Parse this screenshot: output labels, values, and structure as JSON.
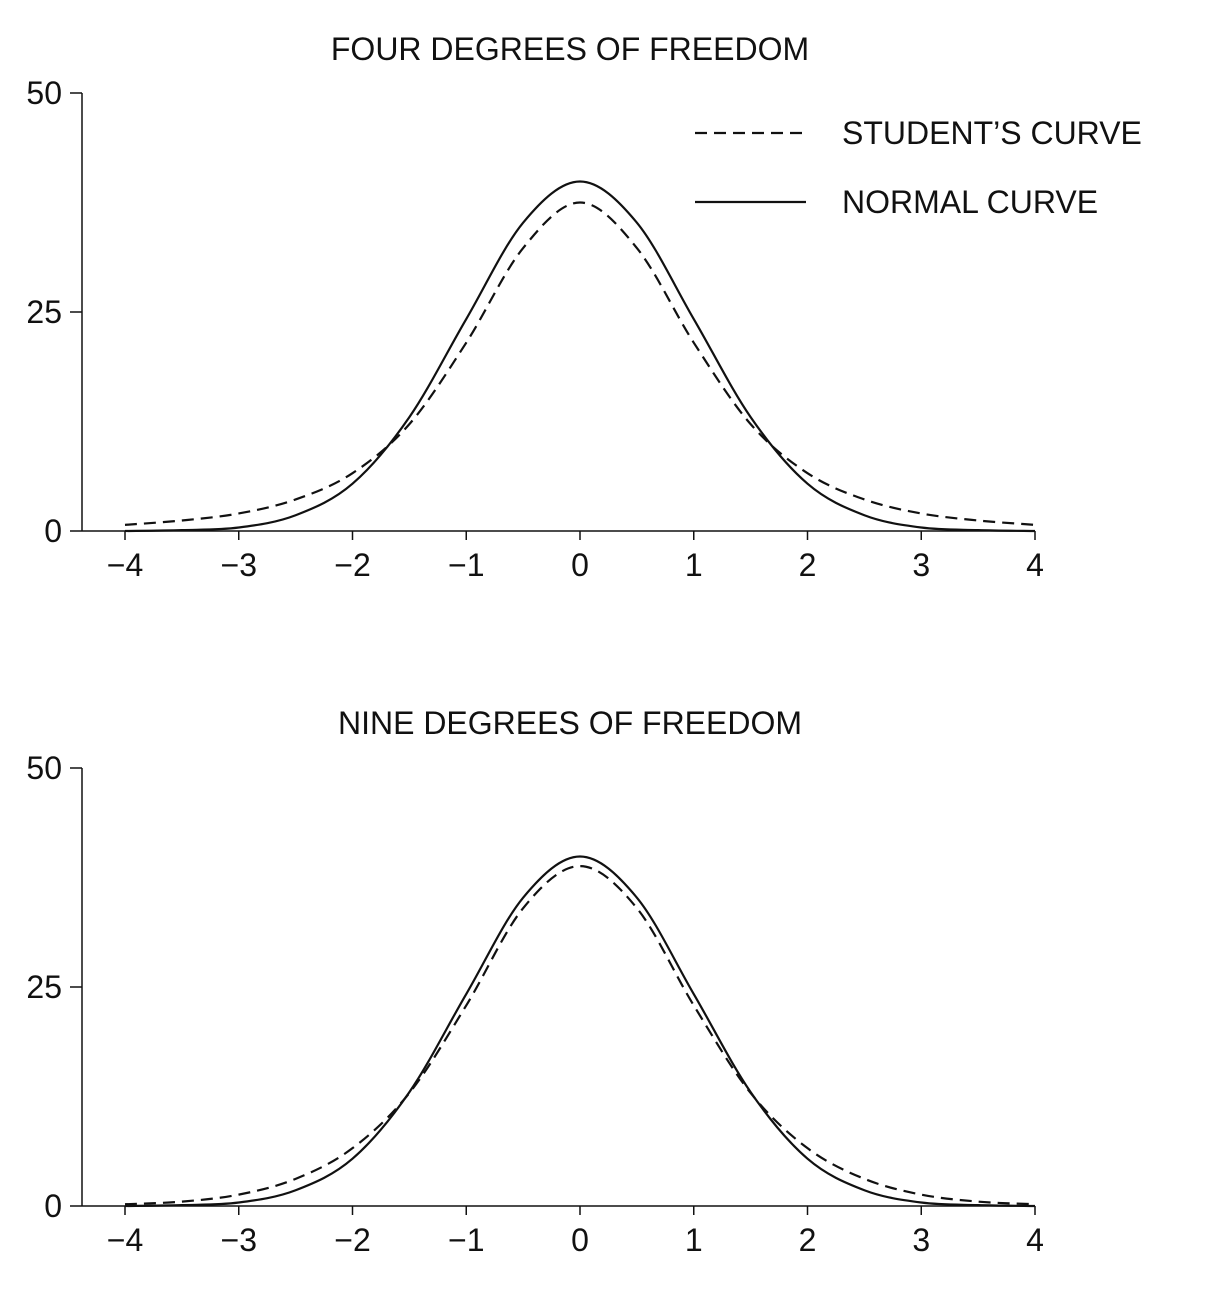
{
  "colors": {
    "ink": "#111111",
    "background": "#ffffff"
  },
  "legend": {
    "placement": "top-right",
    "items": [
      {
        "label": "STUDENT’S CURVE",
        "style": "dashed"
      },
      {
        "label": "NORMAL CURVE",
        "style": "solid"
      }
    ]
  },
  "chart_data": [
    {
      "type": "line",
      "title": "FOUR DEGREES OF FREEDOM",
      "xlabel": "",
      "ylabel": "",
      "xlim": [
        -4,
        4
      ],
      "ylim": [
        0,
        50
      ],
      "grid": false,
      "x_ticks": [
        -4,
        -3,
        -2,
        -1,
        0,
        1,
        2,
        3,
        4
      ],
      "x_tick_labels": [
        "−4",
        "−3",
        "−2",
        "−1",
        "0",
        "1",
        "2",
        "3",
        "4"
      ],
      "y_ticks": [
        0,
        25,
        50
      ],
      "y_tick_labels": [
        "0",
        "25",
        "50"
      ],
      "x": [
        -4,
        -3.5,
        -3,
        -2.5,
        -2,
        -1.5,
        -1,
        -0.5,
        0,
        0.5,
        1,
        1.5,
        2,
        2.5,
        3,
        3.5,
        4
      ],
      "series": [
        {
          "name": "STUDENT’S CURVE",
          "style": "dashed",
          "values": [
            0.7,
            1.2,
            2.0,
            3.6,
            6.6,
            12.2,
            21.5,
            32.3,
            37.5,
            32.3,
            21.5,
            12.2,
            6.6,
            3.6,
            2.0,
            1.2,
            0.7
          ]
        },
        {
          "name": "NORMAL CURVE",
          "style": "solid",
          "values": [
            0.0,
            0.1,
            0.4,
            1.8,
            5.4,
            13.0,
            24.2,
            35.2,
            39.9,
            35.2,
            24.2,
            13.0,
            5.4,
            1.8,
            0.4,
            0.1,
            0.0
          ]
        }
      ]
    },
    {
      "type": "line",
      "title": "NINE DEGREES OF FREEDOM",
      "xlabel": "",
      "ylabel": "",
      "xlim": [
        -4,
        4
      ],
      "ylim": [
        0,
        50
      ],
      "grid": false,
      "x_ticks": [
        -4,
        -3,
        -2,
        -1,
        0,
        1,
        2,
        3,
        4
      ],
      "x_tick_labels": [
        "−4",
        "−3",
        "−2",
        "−1",
        "0",
        "1",
        "2",
        "3",
        "4"
      ],
      "y_ticks": [
        0,
        25,
        50
      ],
      "y_tick_labels": [
        "0",
        "25",
        "50"
      ],
      "x": [
        -4,
        -3.5,
        -3,
        -2.5,
        -2,
        -1.5,
        -1,
        -0.5,
        0,
        0.5,
        1,
        1.5,
        2,
        2.5,
        3,
        3.5,
        4
      ],
      "series": [
        {
          "name": "STUDENT’S CURVE",
          "style": "dashed",
          "values": [
            0.2,
            0.5,
            1.3,
            3.1,
            6.6,
            12.9,
            22.9,
            34.0,
            38.8,
            34.0,
            22.9,
            12.9,
            6.6,
            3.1,
            1.3,
            0.5,
            0.2
          ]
        },
        {
          "name": "NORMAL CURVE",
          "style": "solid",
          "values": [
            0.0,
            0.1,
            0.4,
            1.8,
            5.4,
            13.0,
            24.2,
            35.2,
            39.9,
            35.2,
            24.2,
            13.0,
            5.4,
            1.8,
            0.4,
            0.1,
            0.0
          ]
        }
      ]
    }
  ]
}
